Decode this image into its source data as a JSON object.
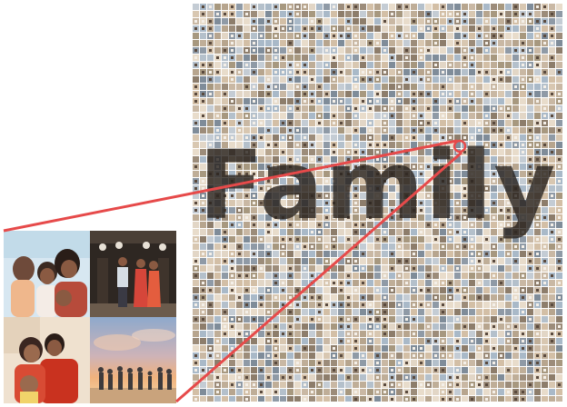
{
  "mosaic": {
    "word": "Family",
    "word_color": "#2b2520"
  },
  "callout": {
    "line_color": "#e64a4a"
  },
  "inset": {
    "photos": [
      {
        "name": "family-hug-photo",
        "palette": [
          "#cfe3ef",
          "#f6d9c7",
          "#b74b3b",
          "#6e4a3a"
        ]
      },
      {
        "name": "couple-traditional-dress-photo",
        "palette": [
          "#2e2722",
          "#d6463a",
          "#c9b49f",
          "#6b5b4c"
        ]
      },
      {
        "name": "family-selfie-photo",
        "palette": [
          "#efe1cf",
          "#c9321f",
          "#7b4a35",
          "#f1d36a"
        ]
      },
      {
        "name": "sunset-silhouettes-photo",
        "palette": [
          "#9bb1cf",
          "#f0b27d",
          "#f7d9a8",
          "#3d3a3c"
        ]
      }
    ]
  }
}
